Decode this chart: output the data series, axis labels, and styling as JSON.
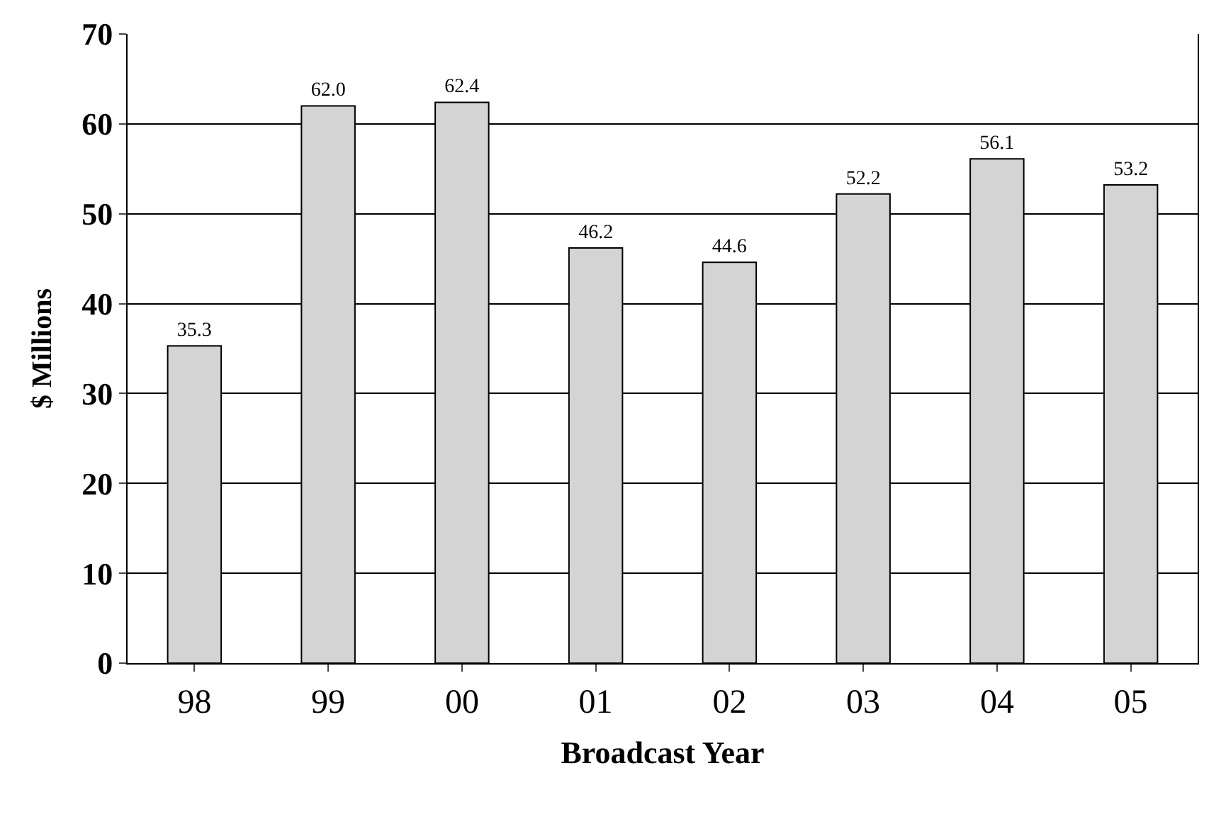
{
  "chart_data": {
    "type": "bar",
    "xlabel": "Broadcast Year",
    "ylabel": "$ Millions",
    "categories": [
      "98",
      "99",
      "00",
      "01",
      "02",
      "03",
      "04",
      "05"
    ],
    "values": [
      35.3,
      62.0,
      62.4,
      46.2,
      44.6,
      52.2,
      56.1,
      53.2
    ],
    "value_labels": [
      "35.3",
      "62.0",
      "62.4",
      "46.2",
      "44.6",
      "52.2",
      "56.1",
      "53.2"
    ],
    "color": "#d4d4d4",
    "ylim": [
      0,
      70
    ],
    "yticks": [
      0,
      10,
      20,
      30,
      40,
      50,
      60,
      70
    ],
    "grid": "y",
    "legend": false
  }
}
